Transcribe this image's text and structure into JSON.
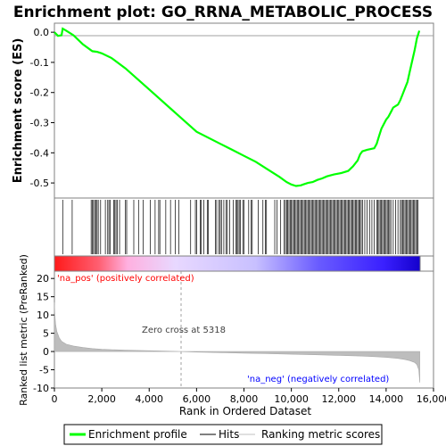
{
  "chart_data": {
    "type": "line",
    "title": "Enrichment plot: GO_RRNA_METABOLIC_PROCESS",
    "es_panel": {
      "ylabel": "Enrichment score (ES)",
      "ylim": [
        -0.55,
        0.03
      ],
      "yticks": [
        "0.0",
        "-0.1",
        "-0.2",
        "-0.3",
        "-0.4",
        "-0.5"
      ],
      "series": [
        {
          "name": "Enrichment profile",
          "color": "#00ff00",
          "x": [
            0,
            150,
            300,
            350,
            500,
            800,
            1200,
            1600,
            1800,
            2000,
            2400,
            3000,
            4000,
            5000,
            6000,
            7000,
            7500,
            8000,
            8500,
            9000,
            9500,
            9800,
            10000,
            10200,
            10400,
            10500,
            10700,
            10900,
            11100,
            11300,
            11500,
            11800,
            12100,
            12400,
            12600,
            12800,
            12900,
            13000,
            13200,
            13500,
            13600,
            13700,
            13800,
            13900,
            14000,
            14100,
            14200,
            14300,
            14500,
            14600,
            14700,
            14800,
            14900,
            15000,
            15100,
            15200,
            15300,
            15400
          ],
          "y": [
            0.0,
            -0.012,
            -0.01,
            0.012,
            0.005,
            -0.01,
            -0.04,
            -0.063,
            -0.065,
            -0.07,
            -0.085,
            -0.12,
            -0.19,
            -0.26,
            -0.33,
            -0.37,
            -0.39,
            -0.41,
            -0.43,
            -0.455,
            -0.48,
            -0.497,
            -0.505,
            -0.51,
            -0.508,
            -0.505,
            -0.5,
            -0.497,
            -0.49,
            -0.485,
            -0.478,
            -0.472,
            -0.467,
            -0.46,
            -0.445,
            -0.425,
            -0.405,
            -0.395,
            -0.39,
            -0.385,
            -0.37,
            -0.345,
            -0.32,
            -0.305,
            -0.29,
            -0.28,
            -0.265,
            -0.25,
            -0.24,
            -0.225,
            -0.205,
            -0.185,
            -0.165,
            -0.13,
            -0.095,
            -0.06,
            -0.02,
            0.005
          ]
        }
      ]
    },
    "hits": {
      "name": "Hits",
      "x": [
        350,
        750,
        1550,
        1600,
        1650,
        1700,
        1750,
        1800,
        1850,
        1950,
        2150,
        2250,
        2300,
        2350,
        2500,
        2550,
        2600,
        2650,
        2750,
        3000,
        3050,
        3350,
        3550,
        3750,
        4050,
        4250,
        4400,
        4450,
        4700,
        4900,
        5100,
        5250,
        5750,
        5950,
        6000,
        6150,
        6200,
        6300,
        6450,
        6500,
        6800,
        6850,
        6950,
        7000,
        7050,
        7150,
        7250,
        7300,
        7400,
        7550,
        7650,
        7700,
        7750,
        7800,
        7850,
        7950,
        8000,
        8200,
        8300,
        8350,
        8600,
        8800,
        8900,
        8950,
        9300,
        9400,
        9550,
        9700,
        9750,
        9800,
        9850,
        9900,
        9950,
        10000,
        10050,
        10100,
        10150,
        10200,
        10250,
        10300,
        10350,
        10400,
        10450,
        10500,
        10550,
        10600,
        10650,
        10700,
        10750,
        10800,
        10850,
        10900,
        10950,
        11000,
        11050,
        11100,
        11150,
        11200,
        11250,
        11300,
        11350,
        11400,
        11450,
        11500,
        11550,
        11600,
        11650,
        11700,
        11750,
        11800,
        11850,
        11900,
        11950,
        12000,
        12050,
        12100,
        12150,
        12200,
        12250,
        12300,
        12350,
        12400,
        12450,
        12500,
        12550,
        12600,
        12650,
        12700,
        12750,
        12800,
        12850,
        12900,
        12950,
        13000,
        13100,
        13200,
        13300,
        13400,
        13500,
        13600,
        13650,
        13700,
        13750,
        13800,
        13850,
        13900,
        13950,
        14000,
        14050,
        14100,
        14150,
        14200,
        14300,
        14400,
        14500,
        14600,
        14650,
        14700,
        14750,
        14800,
        14850,
        14900,
        14950,
        15000,
        15050,
        15100,
        15150,
        15200,
        15250,
        15300,
        15350
      ]
    },
    "ranked_panel": {
      "ylabel": "Ranked list metric (PreRanked)",
      "ylim": [
        -10,
        22
      ],
      "yticks": [
        "20",
        "15",
        "10",
        "5",
        "0",
        "-5",
        "-10"
      ],
      "series_name": "Ranking metric scores",
      "x": [
        0,
        20,
        50,
        100,
        200,
        300,
        500,
        800,
        1200,
        1600,
        2000,
        3000,
        4000,
        5318,
        6000,
        7000,
        8000,
        9000,
        10000,
        11000,
        12000,
        13000,
        13500,
        14000,
        14500,
        14800,
        15000,
        15200,
        15300,
        15380,
        15420
      ],
      "y": [
        13.5,
        10,
        7.5,
        5.5,
        3.8,
        2.8,
        2.0,
        1.5,
        1.1,
        0.8,
        0.6,
        0.35,
        0.2,
        0.0,
        -0.15,
        -0.3,
        -0.45,
        -0.6,
        -0.75,
        -0.9,
        -1.05,
        -1.25,
        -1.4,
        -1.6,
        -1.9,
        -2.2,
        -2.5,
        -3.0,
        -3.6,
        -5.0,
        -8.5
      ]
    },
    "annotations": {
      "pos_label": "'na_pos' (positively correlated)",
      "neg_label": "'na_neg' (negatively correlated)",
      "zero_cross": "Zero cross at 5318",
      "pos_color": "#ff0000",
      "neg_color": "#0000ff"
    },
    "xaxis": {
      "label": "Rank in Ordered Dataset",
      "xlim": [
        0,
        16000
      ],
      "ticks": [
        "0",
        "2,000",
        "4,000",
        "6,000",
        "8,000",
        "10,000",
        "12,000",
        "14,000",
        "16,000"
      ]
    },
    "legend": {
      "placement": "bottom",
      "items": [
        {
          "label": "Enrichment profile",
          "color": "#00ff00"
        },
        {
          "label": "Hits",
          "color": "#000000"
        },
        {
          "label": "Ranking metric scores",
          "color": "#c0c0c0"
        }
      ]
    }
  }
}
